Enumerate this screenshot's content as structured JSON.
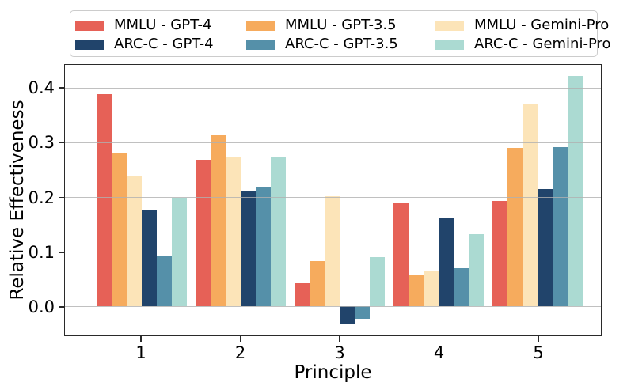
{
  "chart_data": {
    "type": "bar",
    "title": "",
    "xlabel": "Principle",
    "ylabel": "Relative Effectiveness",
    "categories": [
      "1",
      "2",
      "3",
      "4",
      "5"
    ],
    "series": [
      {
        "name": "MMLU - GPT-4",
        "color": "#e66157",
        "values": [
          0.39,
          0.269,
          0.043,
          0.19,
          0.194
        ]
      },
      {
        "name": "MMLU - GPT-3.5",
        "color": "#f6ab5d",
        "values": [
          0.281,
          0.314,
          0.083,
          0.058,
          0.29
        ]
      },
      {
        "name": "MMLU - Gemini-Pro",
        "color": "#fce4b8",
        "values": [
          0.239,
          0.273,
          0.202,
          0.065,
          0.371
        ]
      },
      {
        "name": "ARC-C - GPT-4",
        "color": "#21446b",
        "values": [
          0.177,
          0.213,
          -0.032,
          0.162,
          0.215
        ]
      },
      {
        "name": "ARC-C - GPT-3.5",
        "color": "#5590a9",
        "values": [
          0.094,
          0.22,
          -0.023,
          0.07,
          0.292
        ]
      },
      {
        "name": "ARC-C - Gemini-Pro",
        "color": "#abdad2",
        "values": [
          0.199,
          0.273,
          0.09,
          0.132,
          0.422
        ]
      }
    ],
    "legend": {
      "position": "top",
      "columns": 3,
      "row1": [
        "MMLU - GPT-4",
        "MMLU - GPT-3.5",
        "MMLU - Gemini-Pro"
      ],
      "row2": [
        "ARC-C - GPT-4",
        "ARC-C - GPT-3.5",
        "ARC-C - Gemini-Pro"
      ]
    },
    "yticks": [
      0.0,
      0.1,
      0.2,
      0.3,
      0.4
    ],
    "ytick_labels": [
      "0.0",
      "0.1",
      "0.2",
      "0.3",
      "0.4"
    ],
    "ylim": [
      -0.053,
      0.443
    ],
    "grid": true,
    "grid_color": "#b0b0b0",
    "spine_color": "#2a2a2a",
    "background": "#ffffff"
  }
}
